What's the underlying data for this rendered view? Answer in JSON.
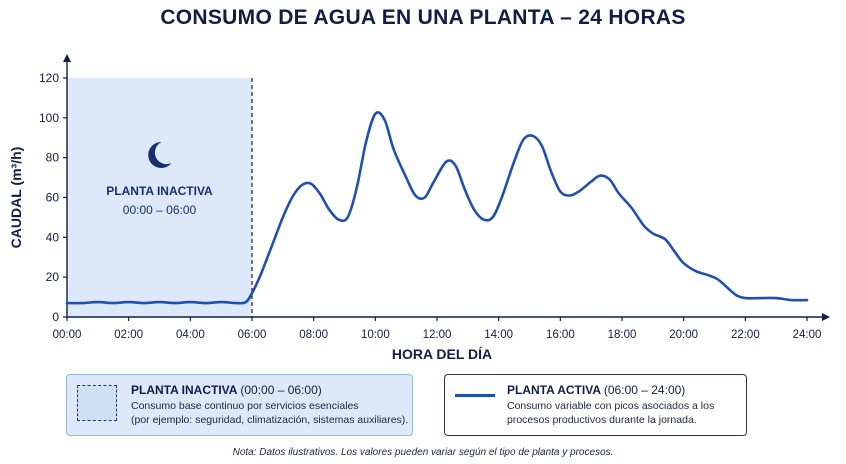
{
  "title": "CONSUMO DE AGUA EN UNA PLANTA – 24 HORAS",
  "colors": {
    "line": "#1f4fb4",
    "inactive_fill": "#dde9f8",
    "axis": "#0f1e45",
    "text": "#0f1e45"
  },
  "chart_data": {
    "type": "line",
    "title": "CONSUMO DE AGUA EN UNA PLANTA – 24 HORAS",
    "xlabel": "HORA DEL DÍA",
    "ylabel": "CAUDAL (m³/h)",
    "xlim": [
      0,
      24
    ],
    "ylim": [
      0,
      120
    ],
    "grid": false,
    "x_ticks": [
      {
        "value": 0,
        "label": "00:00"
      },
      {
        "value": 2,
        "label": "02:00"
      },
      {
        "value": 4,
        "label": "04:00"
      },
      {
        "value": 6,
        "label": "06:00"
      },
      {
        "value": 8,
        "label": "08:00"
      },
      {
        "value": 10,
        "label": "10:00"
      },
      {
        "value": 12,
        "label": "12:00"
      },
      {
        "value": 14,
        "label": "14:00"
      },
      {
        "value": 16,
        "label": "16:00"
      },
      {
        "value": 18,
        "label": "18:00"
      },
      {
        "value": 20,
        "label": "20:00"
      },
      {
        "value": 22,
        "label": "22:00"
      },
      {
        "value": 24,
        "label": "24:00"
      }
    ],
    "y_ticks": [
      0,
      20,
      40,
      60,
      80,
      100,
      120
    ],
    "inactive_region": {
      "x_start": 0,
      "x_end": 6,
      "icon": "moon-icon",
      "label": "PLANTA INACTIVA",
      "range_label": "00:00 – 06:00"
    },
    "series": [
      {
        "points": [
          [
            0,
            7
          ],
          [
            0.5,
            7
          ],
          [
            1,
            7.5
          ],
          [
            1.5,
            7
          ],
          [
            2,
            7.5
          ],
          [
            2.5,
            7
          ],
          [
            3,
            7.5
          ],
          [
            3.5,
            7
          ],
          [
            4,
            7.5
          ],
          [
            4.5,
            7
          ],
          [
            5,
            7.5
          ],
          [
            5.5,
            7
          ],
          [
            5.8,
            7.5
          ],
          [
            6,
            12
          ],
          [
            6.3,
            22
          ],
          [
            6.7,
            38
          ],
          [
            7,
            50
          ],
          [
            7.3,
            60
          ],
          [
            7.6,
            66
          ],
          [
            7.9,
            67
          ],
          [
            8.2,
            62
          ],
          [
            8.5,
            54
          ],
          [
            8.8,
            49
          ],
          [
            9.1,
            50
          ],
          [
            9.4,
            65
          ],
          [
            9.7,
            88
          ],
          [
            10,
            102
          ],
          [
            10.3,
            99
          ],
          [
            10.6,
            84
          ],
          [
            11,
            70
          ],
          [
            11.3,
            61
          ],
          [
            11.6,
            60
          ],
          [
            11.9,
            68
          ],
          [
            12.3,
            78
          ],
          [
            12.6,
            76
          ],
          [
            12.9,
            64
          ],
          [
            13.2,
            54
          ],
          [
            13.5,
            49
          ],
          [
            13.8,
            50
          ],
          [
            14.1,
            60
          ],
          [
            14.5,
            78
          ],
          [
            14.8,
            89
          ],
          [
            15.1,
            91
          ],
          [
            15.4,
            86
          ],
          [
            15.7,
            73
          ],
          [
            16,
            63
          ],
          [
            16.3,
            61
          ],
          [
            16.6,
            63
          ],
          [
            17,
            68
          ],
          [
            17.3,
            71
          ],
          [
            17.6,
            69
          ],
          [
            17.9,
            62
          ],
          [
            18.3,
            55
          ],
          [
            18.7,
            46
          ],
          [
            19,
            42
          ],
          [
            19.4,
            39
          ],
          [
            19.7,
            33
          ],
          [
            20,
            27
          ],
          [
            20.4,
            23
          ],
          [
            20.8,
            21
          ],
          [
            21.1,
            19
          ],
          [
            21.4,
            15
          ],
          [
            21.7,
            11
          ],
          [
            22,
            9.5
          ],
          [
            22.5,
            9.5
          ],
          [
            23,
            9.5
          ],
          [
            23.5,
            8.5
          ],
          [
            24,
            8.5
          ]
        ]
      }
    ]
  },
  "legend": {
    "inactive": {
      "label": "PLANTA INACTIVA",
      "range": "(00:00 – 06:00)",
      "line1": "Consumo base continuo por servicios esenciales",
      "line2": "(por ejemplo: seguridad, climatización, sistemas auxiliares)."
    },
    "active": {
      "label": "PLANTA ACTIVA",
      "range": "(06:00 – 24:00)",
      "line1": "Consumo variable con picos asociados a los",
      "line2": "procesos productivos durante la jornada."
    }
  },
  "note": "Nota: Datos ilustrativos. Los valores pueden variar según el tipo de planta y procesos."
}
